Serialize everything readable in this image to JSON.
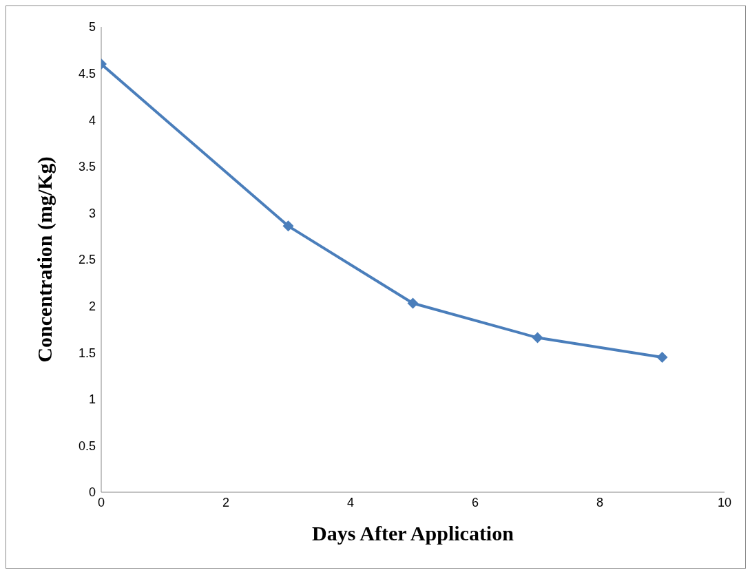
{
  "chart_data": {
    "type": "line",
    "xlabel": "Days After Application",
    "ylabel": "Concentration (mg/Kg)",
    "x": [
      0,
      3,
      5,
      7,
      9
    ],
    "series": [
      {
        "color": "#4a7ebb",
        "values": [
          4.6,
          2.86,
          2.03,
          1.66,
          1.45
        ]
      }
    ],
    "xlim": [
      0,
      10
    ],
    "xticks": [
      0,
      2,
      4,
      6,
      8,
      10
    ],
    "ylim": [
      0,
      5
    ],
    "yticks": [
      0,
      0.5,
      1,
      1.5,
      2,
      2.5,
      3,
      3.5,
      4,
      4.5,
      5
    ],
    "marker": "diamond",
    "line_style": "solid"
  }
}
